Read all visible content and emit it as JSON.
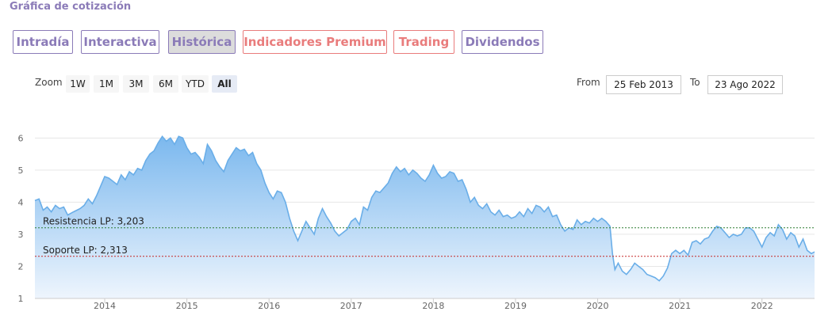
{
  "title": "Gráfica de cotización",
  "tabs": [
    {
      "label": "Intradía",
      "style": "purple",
      "active": false
    },
    {
      "label": "Interactiva",
      "style": "purple",
      "active": false
    },
    {
      "label": "Histórica",
      "style": "purple",
      "active": true
    },
    {
      "label": "Indicadores Premium",
      "style": "red",
      "active": false
    },
    {
      "label": "Trading",
      "style": "red",
      "active": false
    },
    {
      "label": "Dividendos",
      "style": "purple",
      "active": false
    }
  ],
  "zoom": {
    "label": "Zoom",
    "buttons": [
      "1W",
      "1M",
      "3M",
      "6M",
      "YTD",
      "All"
    ],
    "selected": "All"
  },
  "range": {
    "from_label": "From",
    "from_value": "25 Feb 2013",
    "to_label": "To",
    "to_value": "23 Ago 2022"
  },
  "colors": {
    "purple": "#8b7bb8",
    "red": "#e97c7c",
    "line": "#6aaee8",
    "fill_top": "#7bb8ee",
    "fill_bottom": "#eef5fd",
    "resistance": "#2e7d32",
    "support": "#c62828"
  },
  "chart_data": {
    "type": "area",
    "x_domain": [
      2013.15,
      2022.64
    ],
    "ylim": [
      1,
      6.6
    ],
    "y_ticks": [
      1,
      2,
      3,
      4,
      5,
      6
    ],
    "x_ticks": [
      2014,
      2015,
      2016,
      2017,
      2018,
      2019,
      2020,
      2021,
      2022
    ],
    "reference_lines": [
      {
        "name": "Resistencia LP",
        "value": 3.203,
        "label": "Resistencia LP: 3,203",
        "color": "#2e7d32"
      },
      {
        "name": "Soporte LP",
        "value": 2.313,
        "label": "Soporte LP: 2,313",
        "color": "#c62828"
      }
    ],
    "points": [
      [
        2013.15,
        4.05
      ],
      [
        2013.2,
        4.1
      ],
      [
        2013.25,
        3.75
      ],
      [
        2013.3,
        3.85
      ],
      [
        2013.35,
        3.7
      ],
      [
        2013.4,
        3.9
      ],
      [
        2013.45,
        3.8
      ],
      [
        2013.5,
        3.85
      ],
      [
        2013.55,
        3.6
      ],
      [
        2013.62,
        3.7
      ],
      [
        2013.7,
        3.8
      ],
      [
        2013.75,
        3.9
      ],
      [
        2013.8,
        4.1
      ],
      [
        2013.85,
        3.95
      ],
      [
        2013.9,
        4.2
      ],
      [
        2013.95,
        4.5
      ],
      [
        2014.0,
        4.8
      ],
      [
        2014.05,
        4.75
      ],
      [
        2014.1,
        4.65
      ],
      [
        2014.15,
        4.55
      ],
      [
        2014.2,
        4.85
      ],
      [
        2014.25,
        4.7
      ],
      [
        2014.3,
        4.95
      ],
      [
        2014.35,
        4.85
      ],
      [
        2014.4,
        5.05
      ],
      [
        2014.45,
        5.0
      ],
      [
        2014.5,
        5.3
      ],
      [
        2014.55,
        5.5
      ],
      [
        2014.6,
        5.6
      ],
      [
        2014.65,
        5.85
      ],
      [
        2014.7,
        6.05
      ],
      [
        2014.75,
        5.9
      ],
      [
        2014.8,
        6.0
      ],
      [
        2014.85,
        5.8
      ],
      [
        2014.9,
        6.05
      ],
      [
        2014.95,
        6.0
      ],
      [
        2015.0,
        5.7
      ],
      [
        2015.05,
        5.5
      ],
      [
        2015.1,
        5.55
      ],
      [
        2015.15,
        5.4
      ],
      [
        2015.2,
        5.2
      ],
      [
        2015.25,
        5.8
      ],
      [
        2015.3,
        5.6
      ],
      [
        2015.35,
        5.3
      ],
      [
        2015.4,
        5.1
      ],
      [
        2015.45,
        4.95
      ],
      [
        2015.5,
        5.3
      ],
      [
        2015.55,
        5.5
      ],
      [
        2015.6,
        5.7
      ],
      [
        2015.65,
        5.6
      ],
      [
        2015.7,
        5.65
      ],
      [
        2015.75,
        5.45
      ],
      [
        2015.8,
        5.55
      ],
      [
        2015.85,
        5.2
      ],
      [
        2015.9,
        5.0
      ],
      [
        2015.95,
        4.6
      ],
      [
        2016.0,
        4.3
      ],
      [
        2016.05,
        4.1
      ],
      [
        2016.1,
        4.35
      ],
      [
        2016.15,
        4.3
      ],
      [
        2016.2,
        4.0
      ],
      [
        2016.25,
        3.5
      ],
      [
        2016.3,
        3.1
      ],
      [
        2016.35,
        2.8
      ],
      [
        2016.4,
        3.1
      ],
      [
        2016.45,
        3.4
      ],
      [
        2016.5,
        3.2
      ],
      [
        2016.55,
        3.0
      ],
      [
        2016.6,
        3.5
      ],
      [
        2016.65,
        3.8
      ],
      [
        2016.7,
        3.55
      ],
      [
        2016.75,
        3.35
      ],
      [
        2016.8,
        3.1
      ],
      [
        2016.85,
        2.95
      ],
      [
        2016.9,
        3.05
      ],
      [
        2016.95,
        3.15
      ],
      [
        2017.0,
        3.4
      ],
      [
        2017.05,
        3.5
      ],
      [
        2017.1,
        3.3
      ],
      [
        2017.15,
        3.85
      ],
      [
        2017.2,
        3.75
      ],
      [
        2017.25,
        4.15
      ],
      [
        2017.3,
        4.35
      ],
      [
        2017.35,
        4.3
      ],
      [
        2017.4,
        4.45
      ],
      [
        2017.45,
        4.6
      ],
      [
        2017.5,
        4.9
      ],
      [
        2017.55,
        5.1
      ],
      [
        2017.6,
        4.95
      ],
      [
        2017.65,
        5.05
      ],
      [
        2017.7,
        4.85
      ],
      [
        2017.75,
        5.0
      ],
      [
        2017.8,
        4.9
      ],
      [
        2017.85,
        4.75
      ],
      [
        2017.9,
        4.65
      ],
      [
        2017.95,
        4.85
      ],
      [
        2018.0,
        5.15
      ],
      [
        2018.05,
        4.9
      ],
      [
        2018.1,
        4.75
      ],
      [
        2018.15,
        4.8
      ],
      [
        2018.2,
        4.95
      ],
      [
        2018.25,
        4.9
      ],
      [
        2018.3,
        4.65
      ],
      [
        2018.35,
        4.7
      ],
      [
        2018.4,
        4.4
      ],
      [
        2018.45,
        4.0
      ],
      [
        2018.5,
        4.15
      ],
      [
        2018.55,
        3.9
      ],
      [
        2018.6,
        3.8
      ],
      [
        2018.65,
        3.95
      ],
      [
        2018.7,
        3.7
      ],
      [
        2018.75,
        3.6
      ],
      [
        2018.8,
        3.75
      ],
      [
        2018.85,
        3.55
      ],
      [
        2018.9,
        3.6
      ],
      [
        2018.95,
        3.5
      ],
      [
        2019.0,
        3.55
      ],
      [
        2019.05,
        3.7
      ],
      [
        2019.1,
        3.55
      ],
      [
        2019.15,
        3.8
      ],
      [
        2019.2,
        3.65
      ],
      [
        2019.25,
        3.9
      ],
      [
        2019.3,
        3.85
      ],
      [
        2019.35,
        3.7
      ],
      [
        2019.4,
        3.85
      ],
      [
        2019.45,
        3.55
      ],
      [
        2019.5,
        3.6
      ],
      [
        2019.55,
        3.3
      ],
      [
        2019.6,
        3.1
      ],
      [
        2019.65,
        3.2
      ],
      [
        2019.7,
        3.15
      ],
      [
        2019.75,
        3.45
      ],
      [
        2019.8,
        3.3
      ],
      [
        2019.85,
        3.4
      ],
      [
        2019.9,
        3.35
      ],
      [
        2019.95,
        3.5
      ],
      [
        2020.0,
        3.4
      ],
      [
        2020.05,
        3.5
      ],
      [
        2020.1,
        3.4
      ],
      [
        2020.15,
        3.25
      ],
      [
        2020.18,
        2.4
      ],
      [
        2020.21,
        1.9
      ],
      [
        2020.25,
        2.1
      ],
      [
        2020.3,
        1.85
      ],
      [
        2020.35,
        1.75
      ],
      [
        2020.4,
        1.9
      ],
      [
        2020.45,
        2.1
      ],
      [
        2020.5,
        2.0
      ],
      [
        2020.55,
        1.9
      ],
      [
        2020.6,
        1.75
      ],
      [
        2020.65,
        1.7
      ],
      [
        2020.7,
        1.65
      ],
      [
        2020.75,
        1.55
      ],
      [
        2020.8,
        1.7
      ],
      [
        2020.85,
        1.95
      ],
      [
        2020.9,
        2.4
      ],
      [
        2020.95,
        2.5
      ],
      [
        2021.0,
        2.4
      ],
      [
        2021.05,
        2.5
      ],
      [
        2021.1,
        2.35
      ],
      [
        2021.15,
        2.75
      ],
      [
        2021.2,
        2.8
      ],
      [
        2021.25,
        2.7
      ],
      [
        2021.3,
        2.85
      ],
      [
        2021.35,
        2.9
      ],
      [
        2021.4,
        3.1
      ],
      [
        2021.45,
        3.25
      ],
      [
        2021.5,
        3.2
      ],
      [
        2021.55,
        3.05
      ],
      [
        2021.6,
        2.9
      ],
      [
        2021.65,
        3.0
      ],
      [
        2021.7,
        2.95
      ],
      [
        2021.75,
        3.0
      ],
      [
        2021.8,
        3.2
      ],
      [
        2021.85,
        3.2
      ],
      [
        2021.9,
        3.1
      ],
      [
        2021.95,
        2.85
      ],
      [
        2022.0,
        2.6
      ],
      [
        2022.05,
        2.9
      ],
      [
        2022.1,
        3.05
      ],
      [
        2022.15,
        2.95
      ],
      [
        2022.2,
        3.3
      ],
      [
        2022.25,
        3.15
      ],
      [
        2022.3,
        2.85
      ],
      [
        2022.35,
        3.05
      ],
      [
        2022.4,
        2.95
      ],
      [
        2022.45,
        2.6
      ],
      [
        2022.5,
        2.85
      ],
      [
        2022.55,
        2.5
      ],
      [
        2022.6,
        2.4
      ],
      [
        2022.64,
        2.45
      ]
    ]
  }
}
